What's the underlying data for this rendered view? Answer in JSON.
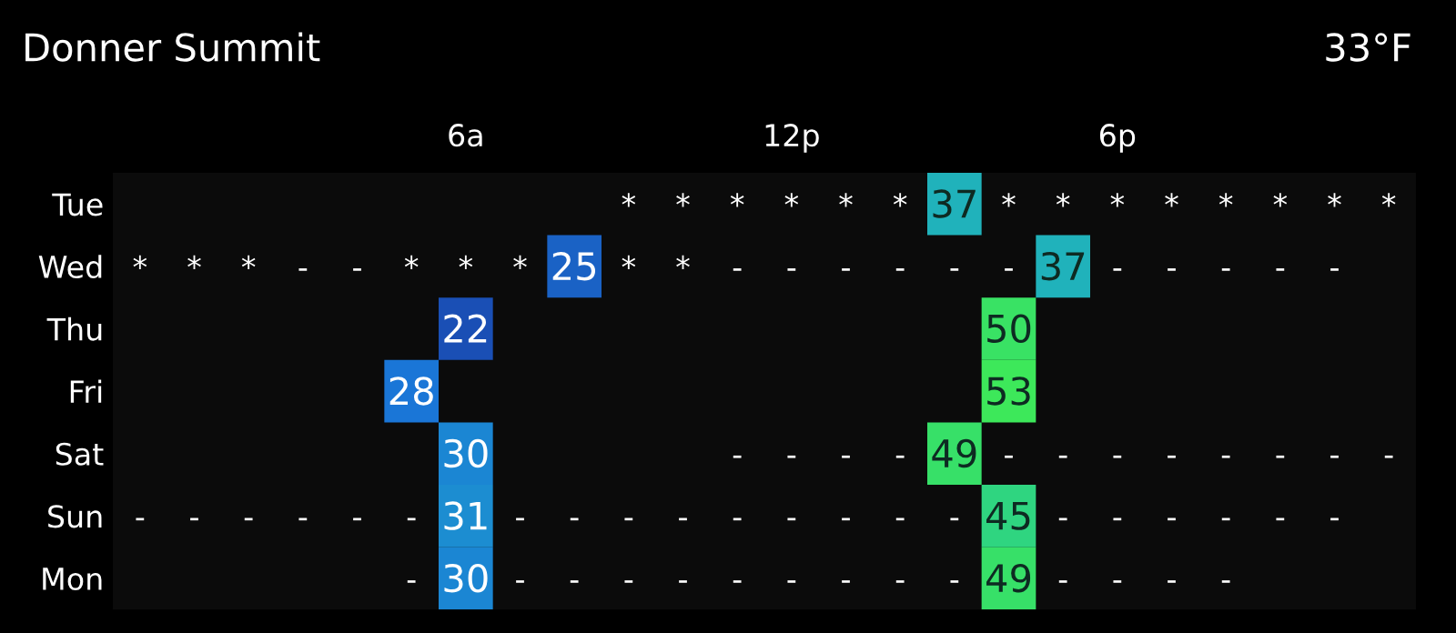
{
  "chart_data": {
    "type": "heatmap",
    "title": "Donner Summit",
    "subtitle": "33°F",
    "categories": [
      null,
      null,
      null,
      null,
      null,
      null,
      "6a",
      null,
      null,
      null,
      null,
      null,
      "12p",
      null,
      null,
      null,
      null,
      null,
      "6p",
      null,
      null,
      null,
      null,
      null
    ],
    "y_categories": [
      "Tue",
      "Wed",
      "Thu",
      "Fri",
      "Sat",
      "Sun",
      "Mon"
    ],
    "cells": [
      [
        null,
        null,
        null,
        null,
        null,
        null,
        null,
        null,
        null,
        null,
        null,
        null,
        null,
        null,
        null,
        37,
        null,
        null,
        null,
        null,
        null,
        null,
        null,
        null
      ],
      [
        null,
        null,
        null,
        null,
        null,
        null,
        null,
        null,
        25,
        null,
        null,
        null,
        null,
        null,
        null,
        null,
        null,
        37,
        null,
        null,
        null,
        null,
        null,
        null
      ],
      [
        null,
        null,
        null,
        null,
        null,
        null,
        22,
        null,
        null,
        null,
        null,
        null,
        null,
        null,
        null,
        null,
        50,
        null,
        null,
        null,
        null,
        null,
        null,
        null
      ],
      [
        null,
        null,
        null,
        null,
        null,
        28,
        null,
        null,
        null,
        null,
        null,
        null,
        null,
        null,
        null,
        null,
        53,
        null,
        null,
        null,
        null,
        null,
        null,
        null
      ],
      [
        null,
        null,
        null,
        null,
        null,
        null,
        30,
        null,
        null,
        null,
        null,
        null,
        null,
        null,
        null,
        49,
        null,
        null,
        null,
        null,
        null,
        null,
        null,
        null
      ],
      [
        null,
        null,
        null,
        null,
        null,
        null,
        31,
        null,
        null,
        null,
        null,
        null,
        null,
        null,
        null,
        null,
        45,
        null,
        null,
        null,
        null,
        null,
        null,
        null
      ],
      [
        null,
        null,
        null,
        null,
        null,
        null,
        30,
        null,
        null,
        null,
        null,
        null,
        null,
        null,
        null,
        null,
        49,
        null,
        null,
        null,
        null,
        null,
        null,
        null
      ]
    ],
    "cell_labels": [
      [
        null,
        null,
        null,
        null,
        null,
        null,
        null,
        null,
        null,
        "*",
        "*",
        "*",
        "*",
        "*",
        "*",
        "37",
        "*",
        "*",
        "*",
        "*",
        "*",
        "*",
        "*",
        "*"
      ],
      [
        "*",
        "*",
        "*",
        "-",
        "-",
        "*",
        "*",
        "*",
        "25",
        "*",
        "*",
        "-",
        "-",
        "-",
        "-",
        "-",
        "-",
        "37",
        "-",
        "-",
        "-",
        "-",
        "-",
        null
      ],
      [
        null,
        null,
        null,
        null,
        null,
        null,
        "22",
        null,
        null,
        null,
        null,
        null,
        null,
        null,
        null,
        null,
        "50",
        null,
        null,
        null,
        null,
        null,
        null,
        null
      ],
      [
        null,
        null,
        null,
        null,
        null,
        "28",
        null,
        null,
        null,
        null,
        null,
        null,
        null,
        null,
        null,
        null,
        "53",
        null,
        null,
        null,
        null,
        null,
        null,
        null
      ],
      [
        null,
        null,
        null,
        null,
        null,
        null,
        "30",
        null,
        null,
        null,
        null,
        "-",
        "-",
        "-",
        "-",
        "49",
        "-",
        "-",
        "-",
        "-",
        "-",
        "-",
        "-",
        "-"
      ],
      [
        "-",
        "-",
        "-",
        "-",
        "-",
        "-",
        "31",
        "-",
        "-",
        "-",
        "-",
        "-",
        "-",
        "-",
        "-",
        "-",
        "45",
        "-",
        "-",
        "-",
        "-",
        "-",
        "-",
        null
      ],
      [
        null,
        null,
        null,
        null,
        null,
        "-",
        "30",
        "-",
        "-",
        "-",
        "-",
        "-",
        "-",
        "-",
        "-",
        "-",
        "49",
        "-",
        "-",
        "-",
        "-",
        null,
        null,
        null
      ]
    ]
  }
}
